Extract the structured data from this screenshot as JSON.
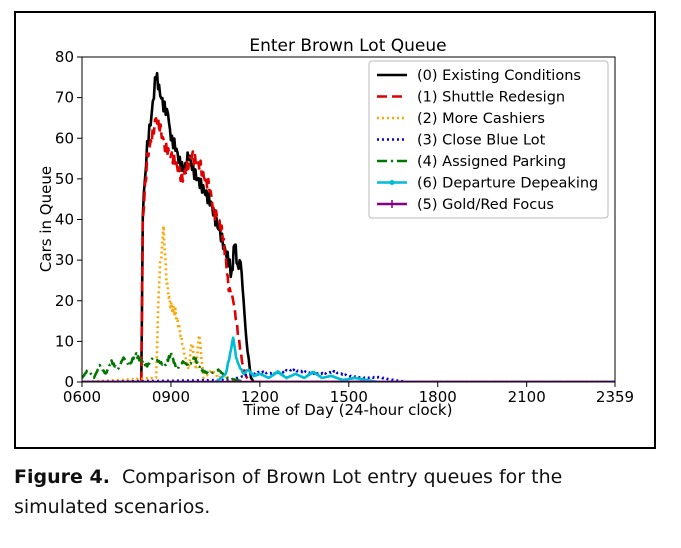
{
  "figure": {
    "caption_label": "Figure 4.",
    "caption_text": "Comparison of Brown Lot entry queues for the simulated scenarios."
  },
  "chart_data": {
    "type": "line",
    "title": "Enter Brown Lot Queue",
    "xlabel": "Time of Day (24-hour clock)",
    "ylabel": "Cars in Queue",
    "xlim_hours": [
      6,
      23.98
    ],
    "ylim": [
      0,
      80
    ],
    "x_ticks": [
      {
        "hour": 6,
        "label": "0600"
      },
      {
        "hour": 9,
        "label": "0900"
      },
      {
        "hour": 12,
        "label": "1200"
      },
      {
        "hour": 15,
        "label": "1500"
      },
      {
        "hour": 18,
        "label": "1800"
      },
      {
        "hour": 21,
        "label": "2100"
      },
      {
        "hour": 23.98,
        "label": "2359"
      }
    ],
    "y_ticks": [
      0,
      10,
      20,
      30,
      40,
      50,
      60,
      70,
      80
    ],
    "grid": false,
    "legend_position": "top-right",
    "series": [
      {
        "name": "(0) Existing Conditions",
        "color": "#000000",
        "dash": "solid",
        "marker": "none",
        "x": [
          6.0,
          8.0,
          8.05,
          8.2,
          8.35,
          8.5,
          8.6,
          8.75,
          8.9,
          9.0,
          9.15,
          9.3,
          9.45,
          9.6,
          9.75,
          9.9,
          10.05,
          10.2,
          10.35,
          10.5,
          10.65,
          10.8,
          10.95,
          11.05,
          11.15,
          11.25,
          11.35,
          11.45,
          11.55,
          11.7,
          11.8,
          12.0,
          12.5,
          13.0,
          14.0,
          23.98
        ],
        "y": [
          0,
          0,
          42,
          58,
          66,
          76,
          72,
          68,
          66,
          60,
          58,
          54,
          52,
          56,
          52,
          50,
          48,
          46,
          44,
          40,
          37,
          33,
          30,
          26,
          35,
          28,
          30,
          20,
          10,
          1,
          0,
          0,
          0,
          0,
          0,
          0
        ]
      },
      {
        "name": "(1) Shuttle Redesign",
        "color": "#e00000",
        "dash": "10,5",
        "marker": "none",
        "x": [
          6.0,
          8.0,
          8.05,
          8.2,
          8.35,
          8.5,
          8.65,
          8.8,
          8.95,
          9.1,
          9.25,
          9.4,
          9.55,
          9.7,
          9.85,
          10.0,
          10.15,
          10.3,
          10.45,
          10.6,
          10.75,
          10.85,
          10.95,
          11.05,
          11.15,
          11.3,
          11.4,
          11.5,
          11.6,
          11.75,
          23.98
        ],
        "y": [
          0,
          0,
          40,
          55,
          60,
          65,
          62,
          58,
          56,
          55,
          52,
          50,
          53,
          56,
          54,
          53,
          50,
          48,
          42,
          40,
          36,
          30,
          23,
          22,
          18,
          10,
          5,
          2,
          0.5,
          0,
          0
        ]
      },
      {
        "name": "(2) More Cashiers",
        "color": "#ffa500",
        "dash": "2,3",
        "marker": "none",
        "x": [
          6.0,
          8.5,
          8.6,
          8.75,
          8.85,
          8.95,
          9.05,
          9.15,
          9.25,
          9.35,
          9.45,
          9.6,
          9.7,
          9.85,
          9.95,
          10.1,
          10.25,
          10.4,
          10.6,
          10.8,
          11.0,
          23.98
        ],
        "y": [
          0,
          1,
          25,
          38,
          25,
          20,
          18,
          17,
          14,
          11,
          7,
          3,
          10,
          3,
          12,
          1,
          2,
          3,
          1,
          2,
          0,
          0
        ]
      },
      {
        "name": "(3) Close Blue Lot",
        "color": "#0000dd",
        "dash": "2,3",
        "marker": "none",
        "x": [
          6.0,
          11.0,
          11.5,
          12.0,
          12.5,
          13.0,
          13.5,
          14.0,
          14.5,
          15.0,
          15.5,
          16.0,
          16.5,
          17.0,
          23.98
        ],
        "y": [
          0,
          0.5,
          1.5,
          2.5,
          2,
          3,
          2.5,
          2,
          2.5,
          1.5,
          1,
          1.2,
          0.5,
          0,
          0
        ]
      },
      {
        "name": "(4) Assigned Parking",
        "color": "#007700",
        "dash": "10,4,2,4",
        "marker": "none",
        "x": [
          6.0,
          6.2,
          6.4,
          6.6,
          6.8,
          7.0,
          7.2,
          7.4,
          7.6,
          7.8,
          8.0,
          8.2,
          8.4,
          8.6,
          8.8,
          9.0,
          9.2,
          9.4,
          9.6,
          9.8,
          10.0,
          10.3,
          10.6,
          10.9,
          11.2,
          11.5,
          23.98
        ],
        "y": [
          1,
          3,
          1,
          4,
          2,
          5,
          3,
          6,
          4,
          7,
          5,
          4,
          6,
          5,
          4,
          7,
          3,
          5,
          4,
          6,
          3,
          2,
          3,
          1,
          0.5,
          0,
          0
        ]
      },
      {
        "name": "(6) Departure Depeaking",
        "color": "#00bcd4",
        "dash": "solid",
        "marker": "dot",
        "x": [
          6.0,
          10.5,
          10.7,
          10.85,
          11.0,
          11.1,
          11.2,
          11.3,
          11.45,
          11.6,
          11.8,
          12.0,
          12.3,
          12.6,
          12.9,
          13.2,
          13.5,
          13.8,
          14.1,
          14.4,
          14.8,
          15.2,
          15.6,
          16.0,
          23.98
        ],
        "y": [
          0,
          0,
          1,
          2,
          7,
          11,
          6,
          4,
          2,
          3,
          1.5,
          2,
          1,
          2.5,
          1,
          2,
          1,
          2.5,
          1,
          1.5,
          0.5,
          1,
          0.5,
          0,
          0
        ]
      },
      {
        "name": "(5) Gold/Red Focus",
        "color": "#800080",
        "dash": "solid",
        "marker": "plus",
        "x": [
          6.0,
          23.98
        ],
        "y": [
          0,
          0
        ]
      }
    ]
  }
}
